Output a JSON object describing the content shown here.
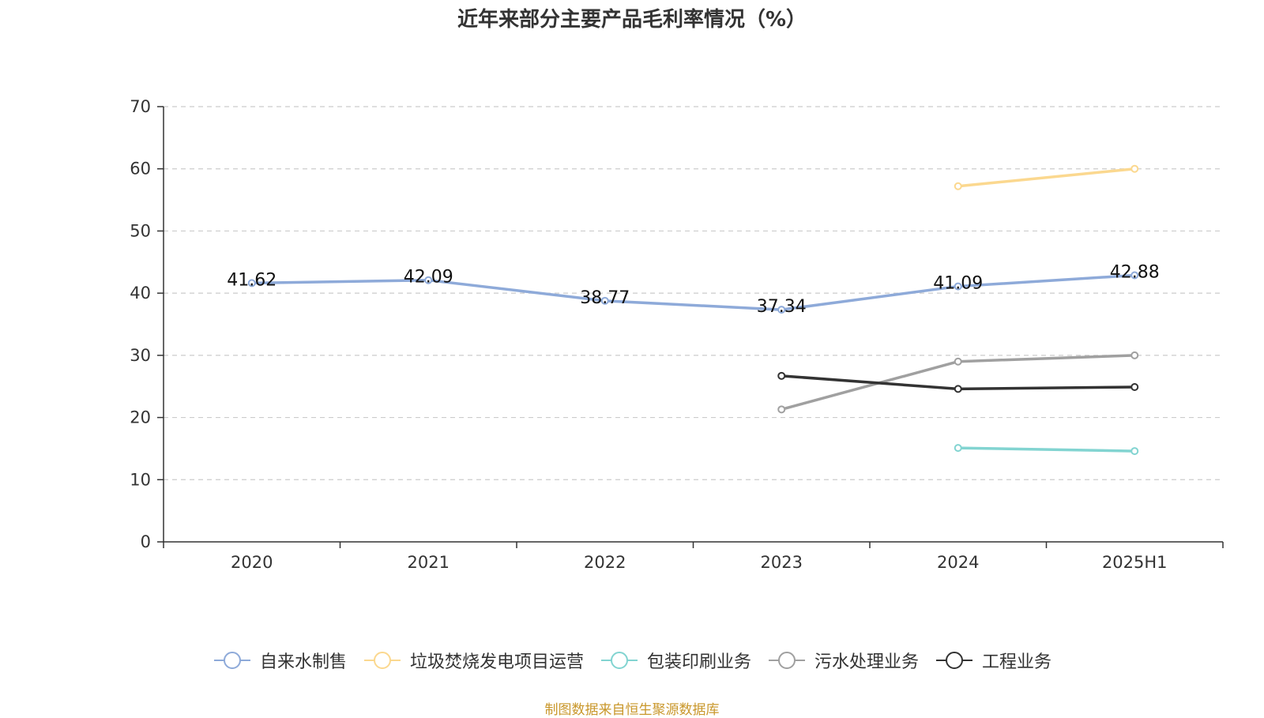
{
  "chart_data": {
    "type": "line",
    "title": "近年来部分主要产品毛利率情况（%）",
    "categories": [
      "2020",
      "2021",
      "2022",
      "2023",
      "2024",
      "2025H1"
    ],
    "ylim": [
      0,
      70
    ],
    "yticks": [
      0,
      10,
      20,
      30,
      40,
      50,
      60,
      70
    ],
    "grid": true,
    "legend_position": "bottom",
    "series": [
      {
        "name": "自来水制售",
        "color": "#8eaad9",
        "values": [
          41.62,
          42.09,
          38.77,
          37.34,
          41.09,
          42.88
        ],
        "data_labels": [
          "41.62",
          "42.09",
          "38.77",
          "37.34",
          "41.09",
          "42.88"
        ]
      },
      {
        "name": "垃圾焚烧发电项目运营",
        "color": "#fbd88f",
        "values": [
          null,
          null,
          null,
          null,
          57.2,
          60.0
        ]
      },
      {
        "name": "包装印刷业务",
        "color": "#82d4d1",
        "values": [
          null,
          null,
          null,
          null,
          15.1,
          14.6
        ]
      },
      {
        "name": "污水处理业务",
        "color": "#a0a0a0",
        "values": [
          null,
          null,
          null,
          21.3,
          29.0,
          30.0
        ]
      },
      {
        "name": "工程业务",
        "color": "#333333",
        "values": [
          null,
          null,
          null,
          26.7,
          24.6,
          24.9
        ]
      }
    ]
  },
  "source_note": "制图数据来自恒生聚源数据库"
}
